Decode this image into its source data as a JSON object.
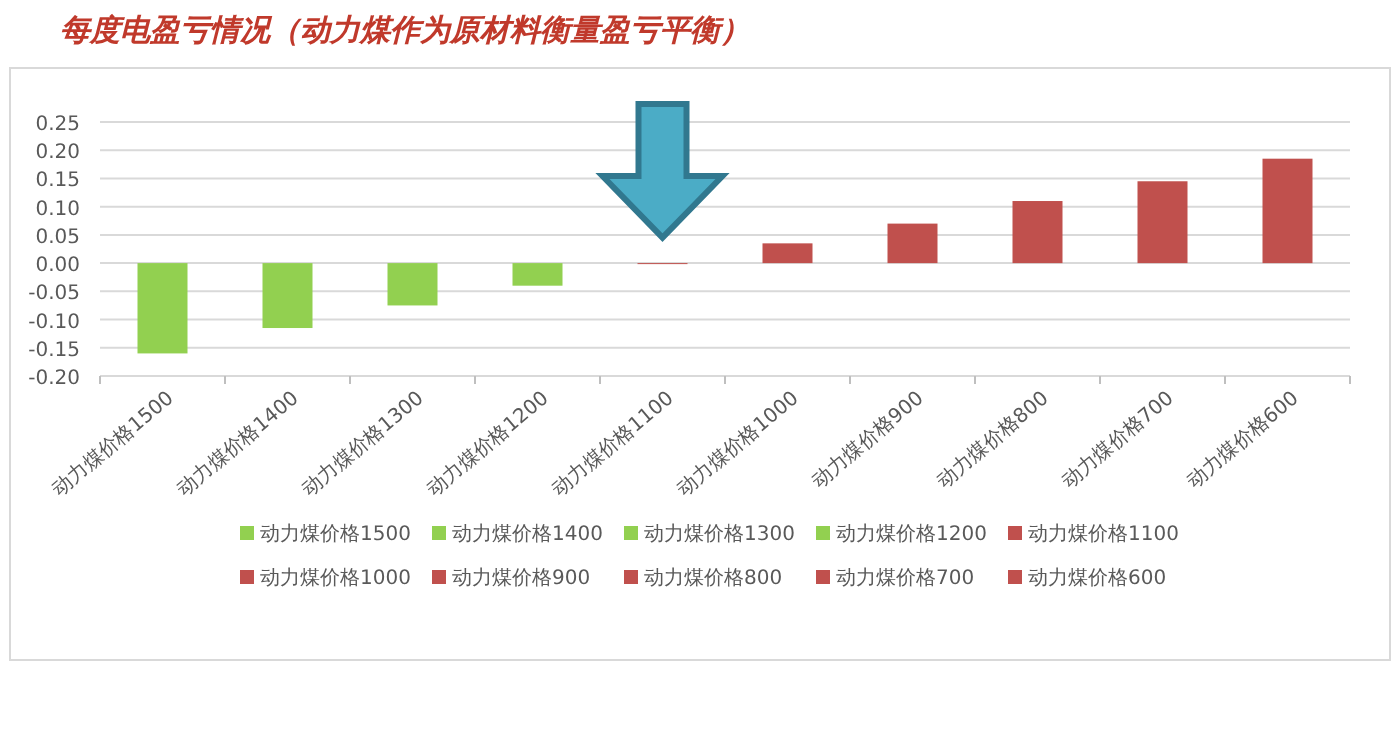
{
  "chart_data": {
    "type": "bar",
    "title": "每度电盈亏情况（动力煤作为原材料衡量盈亏平衡）",
    "categories": [
      "动力煤价格1500",
      "动力煤价格1400",
      "动力煤价格1300",
      "动力煤价格1200",
      "动力煤价格1100",
      "动力煤价格1000",
      "动力煤价格900",
      "动力煤价格800",
      "动力煤价格700",
      "动力煤价格600"
    ],
    "series": [
      {
        "name": "动力煤价格1500",
        "color": "#92d050",
        "values": [
          -0.16,
          null,
          null,
          null,
          null,
          null,
          null,
          null,
          null,
          null
        ]
      },
      {
        "name": "动力煤价格1400",
        "color": "#92d050",
        "values": [
          null,
          -0.115,
          null,
          null,
          null,
          null,
          null,
          null,
          null,
          null
        ]
      },
      {
        "name": "动力煤价格1300",
        "color": "#92d050",
        "values": [
          null,
          null,
          -0.075,
          null,
          null,
          null,
          null,
          null,
          null,
          null
        ]
      },
      {
        "name": "动力煤价格1200",
        "color": "#92d050",
        "values": [
          null,
          null,
          null,
          -0.04,
          null,
          null,
          null,
          null,
          null,
          null
        ]
      },
      {
        "name": "动力煤价格1100",
        "color": "#c0504d",
        "values": [
          null,
          null,
          null,
          null,
          0,
          null,
          null,
          null,
          null,
          null
        ]
      },
      {
        "name": "动力煤价格1000",
        "color": "#c0504d",
        "values": [
          null,
          null,
          null,
          null,
          null,
          0.035,
          null,
          null,
          null,
          null
        ]
      },
      {
        "name": "动力煤价格900",
        "color": "#c0504d",
        "values": [
          null,
          null,
          null,
          null,
          null,
          null,
          0.07,
          null,
          null,
          null
        ]
      },
      {
        "name": "动力煤价格800",
        "color": "#c0504d",
        "values": [
          null,
          null,
          null,
          null,
          null,
          null,
          null,
          0.11,
          null,
          null
        ]
      },
      {
        "name": "动力煤价格700",
        "color": "#c0504d",
        "values": [
          null,
          null,
          null,
          null,
          null,
          null,
          null,
          null,
          0.145,
          null
        ]
      },
      {
        "name": "动力煤价格600",
        "color": "#c0504d",
        "values": [
          null,
          null,
          null,
          null,
          null,
          null,
          null,
          null,
          null,
          0.185
        ]
      }
    ],
    "ylim": [
      -0.2,
      0.25
    ],
    "yticks": [
      {
        "value": -0.2,
        "label": "-0.20"
      },
      {
        "value": -0.15,
        "label": "-0.15"
      },
      {
        "value": -0.1,
        "label": "-0.10"
      },
      {
        "value": -0.05,
        "label": "-0.05"
      },
      {
        "value": 0,
        "label": "0.00"
      },
      {
        "value": 0.05,
        "label": "0.05"
      },
      {
        "value": 0.1,
        "label": "0.10"
      },
      {
        "value": 0.15,
        "label": "0.15"
      },
      {
        "value": 0.2,
        "label": "0.20"
      },
      {
        "value": 0.25,
        "label": "0.25"
      }
    ],
    "grid": "y",
    "legend": "bottom"
  }
}
